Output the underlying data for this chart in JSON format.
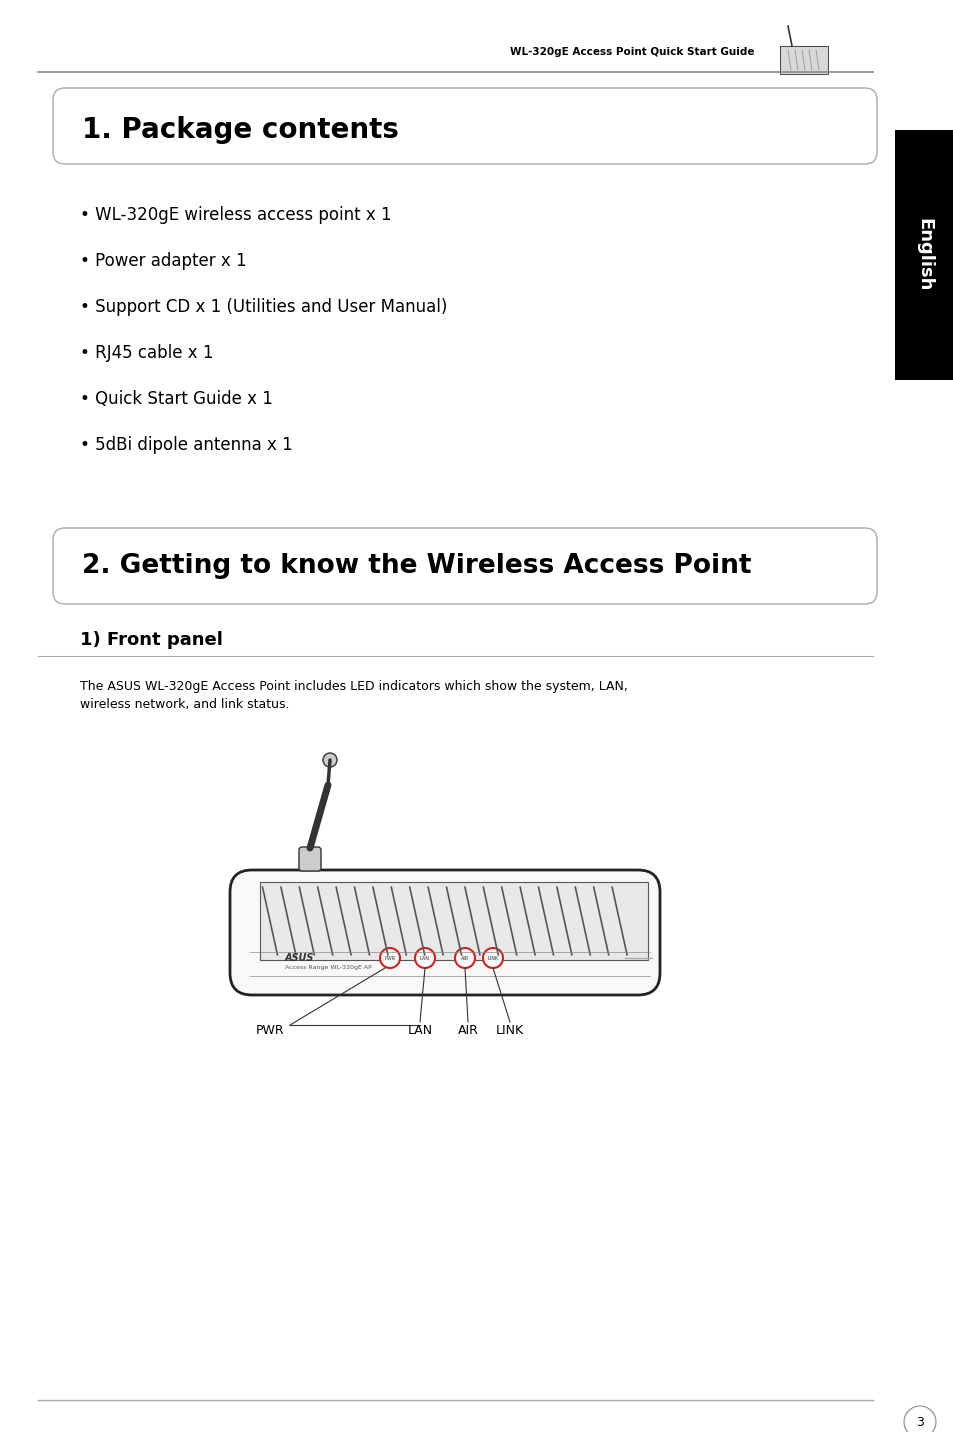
{
  "bg_color": "#ffffff",
  "header_text": "WL-320gE Access Point Quick Start Guide",
  "section1_title": "1. Package contents",
  "bullet_items": [
    "• WL-320gE wireless access point x 1",
    "• Power adapter x 1",
    "• Support CD x 1 (Utilities and User Manual)",
    "• RJ45 cable x 1",
    "• Quick Start Guide x 1",
    "• 5dBi dipole antenna x 1"
  ],
  "section2_title": "2. Getting to know the Wireless Access Point",
  "subsection_title": "1) Front panel",
  "body_text_line1": "The ASUS WL-320gE Access Point includes LED indicators which show the system, LAN,",
  "body_text_line2": "wireless network, and link status.",
  "page_number": "3",
  "english_text": "English"
}
